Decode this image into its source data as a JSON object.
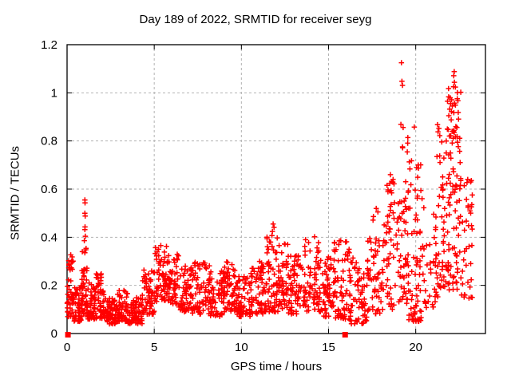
{
  "chart_data": {
    "type": "scatter",
    "title": "Day 189 of 2022, SRMTID for receiver seyg",
    "xlabel": "GPS time / hours",
    "ylabel": "SRMTID / TECUs",
    "xlim": [
      0,
      24
    ],
    "ylim": [
      0,
      1.2
    ],
    "xticks": {
      "values": [
        0,
        5,
        10,
        15,
        20
      ],
      "labels": [
        "0",
        "5",
        "10",
        "15",
        "20"
      ]
    },
    "yticks": {
      "values": [
        0,
        0.2,
        0.4,
        0.6,
        0.8,
        1,
        1.2
      ],
      "labels": [
        "0",
        "0.2",
        "0.4",
        "0.6",
        "0.8",
        "1",
        "1.2"
      ]
    },
    "grid": true,
    "legend": "none",
    "marker": {
      "shape": "plus",
      "color": "#ff0000",
      "size": 6.6,
      "stroke_width": 1.5
    },
    "gap_markers": {
      "shape": "filled-square",
      "color": "#ff0000",
      "size": 7,
      "points": [
        [
          0.05,
          0
        ],
        [
          15.95,
          0
        ]
      ]
    },
    "series_description": "SRMTID scatter: dense band 0.05-0.3 TECUs from 0-17h with spike to 0.55 near 1h and bumps ~0.35-0.45 near 5.5h, 11.8h, 14h, 15.6h; disturbed period 17-23.3h spreading 0.05-1.13 with maxima 1.125 at 19.2h and 1.09 at 22.2h",
    "density_segments": [
      [
        0.0,
        0.35,
        45,
        0.07,
        0.33,
        1.6
      ],
      [
        0.35,
        0.85,
        55,
        0.05,
        0.2,
        1.5
      ],
      [
        0.85,
        1.15,
        40,
        0.08,
        0.36,
        1.2
      ],
      [
        1.15,
        1.6,
        50,
        0.06,
        0.22,
        1.5
      ],
      [
        1.6,
        2.15,
        55,
        0.06,
        0.25,
        1.4
      ],
      [
        2.15,
        2.8,
        60,
        0.04,
        0.15,
        1.3
      ],
      [
        2.8,
        3.5,
        60,
        0.05,
        0.18,
        1.3
      ],
      [
        3.5,
        4.3,
        65,
        0.04,
        0.15,
        1.3
      ],
      [
        4.3,
        5.0,
        60,
        0.08,
        0.27,
        1.3
      ],
      [
        5.0,
        5.8,
        65,
        0.13,
        0.37,
        1.2
      ],
      [
        5.8,
        6.4,
        50,
        0.12,
        0.33,
        1.2
      ],
      [
        6.4,
        7.2,
        60,
        0.09,
        0.28,
        1.3
      ],
      [
        7.2,
        8.2,
        70,
        0.08,
        0.3,
        1.3
      ],
      [
        8.2,
        9.0,
        60,
        0.07,
        0.27,
        1.3
      ],
      [
        9.0,
        9.7,
        55,
        0.09,
        0.3,
        1.3
      ],
      [
        9.7,
        10.5,
        60,
        0.07,
        0.24,
        1.3
      ],
      [
        10.5,
        11.3,
        60,
        0.08,
        0.3,
        1.3
      ],
      [
        11.3,
        12.1,
        65,
        0.09,
        0.42,
        1.5
      ],
      [
        12.1,
        12.7,
        50,
        0.1,
        0.38,
        1.4
      ],
      [
        12.7,
        13.6,
        65,
        0.08,
        0.33,
        1.4
      ],
      [
        13.6,
        14.5,
        65,
        0.09,
        0.4,
        1.5
      ],
      [
        14.5,
        15.3,
        60,
        0.07,
        0.32,
        1.4
      ],
      [
        15.3,
        16.2,
        65,
        0.06,
        0.4,
        1.6
      ],
      [
        16.2,
        17.2,
        70,
        0.04,
        0.32,
        1.5
      ],
      [
        17.2,
        18.2,
        65,
        0.08,
        0.52,
        1.5
      ],
      [
        18.2,
        19.1,
        60,
        0.1,
        0.64,
        1.3
      ],
      [
        19.1,
        19.6,
        48,
        0.12,
        0.8,
        1.2
      ],
      [
        19.6,
        20.5,
        75,
        0.05,
        0.72,
        1.9
      ],
      [
        20.5,
        21.2,
        32,
        0.1,
        0.52,
        1.4
      ],
      [
        21.2,
        21.8,
        45,
        0.15,
        0.8,
        1.3
      ],
      [
        21.8,
        22.6,
        95,
        0.18,
        1.02,
        1.25
      ],
      [
        22.6,
        23.25,
        38,
        0.14,
        0.66,
        1.3
      ]
    ],
    "outlier_points": [
      [
        1.02,
        0.555
      ],
      [
        1.03,
        0.543
      ],
      [
        1.02,
        0.5
      ],
      [
        1.04,
        0.488
      ],
      [
        1.03,
        0.443
      ],
      [
        1.02,
        0.432
      ],
      [
        1.05,
        0.404
      ],
      [
        0.99,
        0.386
      ],
      [
        11.82,
        0.455
      ],
      [
        11.87,
        0.441
      ],
      [
        11.78,
        0.424
      ],
      [
        14.2,
        0.402
      ],
      [
        15.62,
        0.385
      ],
      [
        19.18,
        1.125
      ],
      [
        19.21,
        1.048
      ],
      [
        19.24,
        1.031
      ],
      [
        19.15,
        0.869
      ],
      [
        19.28,
        0.856
      ],
      [
        19.92,
        0.858
      ],
      [
        19.55,
        0.814
      ],
      [
        22.21,
        1.088
      ],
      [
        22.18,
        1.071
      ],
      [
        22.22,
        1.044
      ],
      [
        22.17,
        1.025
      ],
      [
        22.28,
        1.024
      ],
      [
        22.0,
        0.955
      ],
      [
        22.1,
        0.945
      ],
      [
        21.95,
        0.932
      ],
      [
        22.05,
        0.922
      ],
      [
        21.9,
        0.905
      ],
      [
        21.25,
        0.868
      ],
      [
        21.33,
        0.852
      ],
      [
        21.28,
        0.838
      ],
      [
        21.38,
        0.822
      ],
      [
        22.3,
        0.86
      ],
      [
        22.15,
        0.84
      ],
      [
        21.75,
        0.8
      ],
      [
        22.4,
        0.795
      ],
      [
        20.15,
        0.7
      ],
      [
        20.05,
        0.69
      ],
      [
        18.55,
        0.66
      ],
      [
        18.7,
        0.64
      ]
    ],
    "seed": 18922
  },
  "colors": {
    "marker": "#ff0000",
    "grid": "#b2b2b2",
    "frame": "#000000",
    "background": "#ffffff",
    "text": "#000000"
  }
}
